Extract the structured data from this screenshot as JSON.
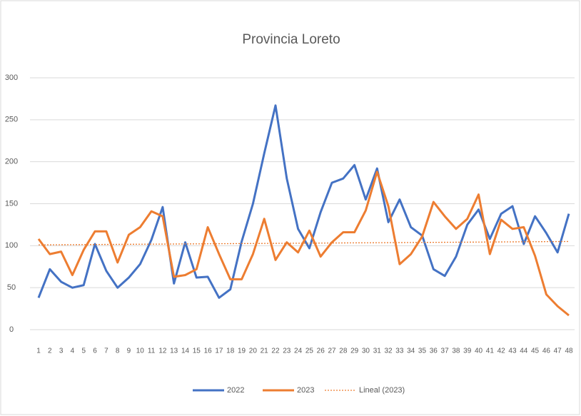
{
  "chart_data": {
    "type": "line",
    "title": "Provincia Loreto",
    "categories": [
      "1",
      "2",
      "3",
      "4",
      "5",
      "6",
      "7",
      "8",
      "9",
      "10",
      "11",
      "12",
      "13",
      "14",
      "15",
      "16",
      "17",
      "18",
      "19",
      "20",
      "21",
      "22",
      "23",
      "24",
      "25",
      "26",
      "27",
      "28",
      "29",
      "30",
      "31",
      "32",
      "33",
      "34",
      "35",
      "36",
      "37",
      "38",
      "39",
      "40",
      "41",
      "42",
      "43",
      "44",
      "45",
      "46",
      "47",
      "48"
    ],
    "series": [
      {
        "name": "2022",
        "color": "#4472c4",
        "values": [
          38,
          72,
          57,
          50,
          53,
          102,
          70,
          50,
          62,
          78,
          107,
          146,
          55,
          104,
          62,
          63,
          38,
          48,
          105,
          150,
          210,
          267,
          180,
          120,
          97,
          140,
          175,
          180,
          196,
          155,
          192,
          128,
          155,
          122,
          112,
          72,
          64,
          87,
          125,
          143,
          108,
          138,
          147,
          102,
          135,
          115,
          92,
          138
        ]
      },
      {
        "name": "2023",
        "color": "#ed7d31",
        "values": [
          108,
          90,
          93,
          65,
          95,
          117,
          117,
          80,
          113,
          122,
          141,
          135,
          63,
          65,
          72,
          122,
          90,
          60,
          60,
          90,
          132,
          83,
          104,
          92,
          118,
          87,
          104,
          116,
          116,
          142,
          188,
          147,
          78,
          90,
          111,
          152,
          135,
          120,
          132,
          161,
          90,
          131,
          120,
          122,
          88,
          42,
          28,
          17
        ]
      }
    ],
    "trend": {
      "name": "Lineal (2023)",
      "color": "#ed7d31",
      "x": [
        1,
        48
      ],
      "values": [
        101,
        105
      ]
    },
    "ylim": [
      0,
      300
    ],
    "yticks": [
      0,
      50,
      100,
      150,
      200,
      250,
      300
    ],
    "grid": true,
    "legend": "bottom"
  }
}
